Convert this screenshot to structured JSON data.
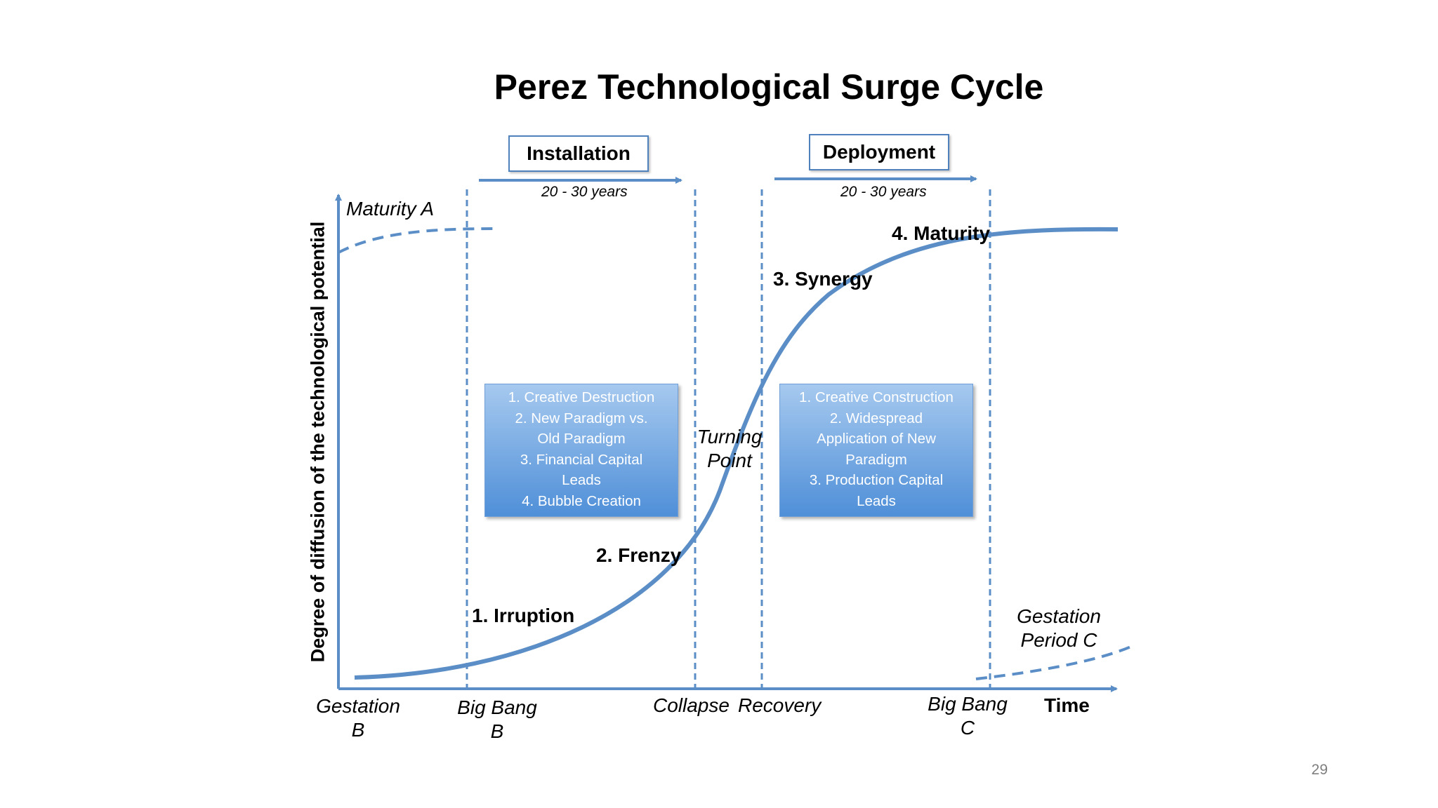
{
  "title": "Perez Technological Surge Cycle",
  "phases": [
    {
      "label": "Installation",
      "duration": "20 - 30 years"
    },
    {
      "label": "Deployment",
      "duration": "20 - 30 years"
    }
  ],
  "y_axis_label": "Degree of diffusion of the technological potential",
  "x_axis_label": "Time",
  "stage_labels": {
    "irruption": "1. Irruption",
    "frenzy": "2. Frenzy",
    "synergy": "3. Synergy",
    "maturity": "4. Maturity"
  },
  "curve_labels": {
    "maturity_a": "Maturity A",
    "turning_point": [
      "Turning",
      "Point"
    ],
    "gestation_c": [
      "Gestation",
      "Period C"
    ]
  },
  "time_labels": {
    "gestation_b": [
      "Gestation",
      "B"
    ],
    "big_bang_b": [
      "Big Bang",
      "B"
    ],
    "collapse": "Collapse",
    "recovery": "Recovery",
    "big_bang_c": [
      "Big Bang",
      "C"
    ]
  },
  "installation_box": [
    "1. Creative Destruction",
    "2. New Paradigm vs.",
    "Old Paradigm",
    "3. Financial Capital",
    "Leads",
    "4. Bubble Creation"
  ],
  "deployment_box": [
    "1. Creative Construction",
    "2. Widespread",
    "Application of New",
    "Paradigm",
    "3. Production Capital",
    "Leads"
  ],
  "page_number": "29",
  "colors": {
    "line": "#5b8ec6",
    "box_top": "#a6c9ef",
    "box_bottom": "#4f8fd8"
  }
}
